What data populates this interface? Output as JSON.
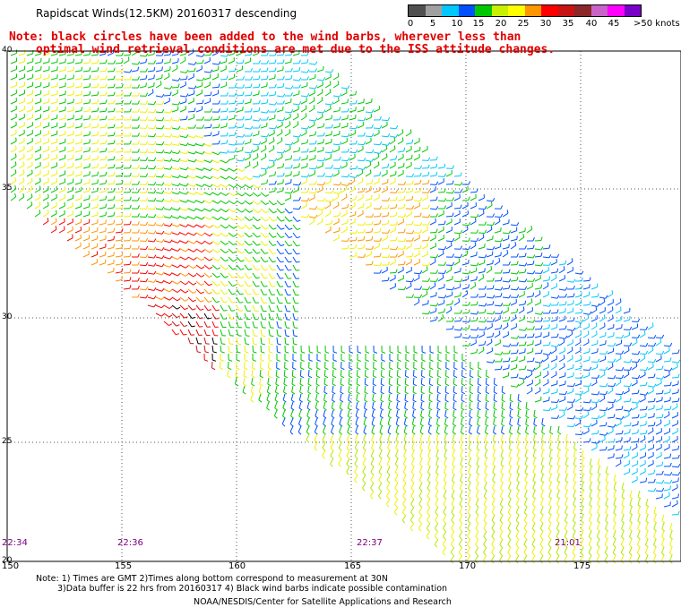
{
  "title": "Rapidscat Winds(12.5KM) 20160317 descending",
  "note": {
    "line1": "Note: black circles have been added to the wind barbs, wherever less than",
    "line2": "optimal wind retrieval conditions are met due to the ISS attitude changes."
  },
  "color_scale": {
    "labels": [
      "0",
      "5",
      "10",
      "15",
      "20",
      "25",
      "30",
      "35",
      "40",
      "45",
      ">50 knots"
    ],
    "colors": [
      "#505050",
      "#a0a0a0",
      "#00c8ff",
      "#0050ff",
      "#00c800",
      "#c8f000",
      "#ffff00",
      "#ff9600",
      "#ff0000",
      "#c81414",
      "#8c2828",
      "#c864c8",
      "#ff00ff",
      "#7800c8"
    ]
  },
  "latitude_labels": [
    "40",
    "35",
    "30",
    "25",
    "20"
  ],
  "longitude_labels": [
    "150",
    "155",
    "160",
    "165",
    "170",
    "175"
  ],
  "pass_times": [
    "22:34",
    "22:36",
    "22:37",
    "21:01"
  ],
  "footer": {
    "line1": "Note: 1) Times are GMT 2)Times along bottom correspond to measurement at 30N",
    "line2": "3)Data buffer is 22 hrs from 20160317 4) Black wind barbs indicate possible contamination",
    "line3": "NOAA/NESDIS/Center for Satellite Applications and Research"
  }
}
